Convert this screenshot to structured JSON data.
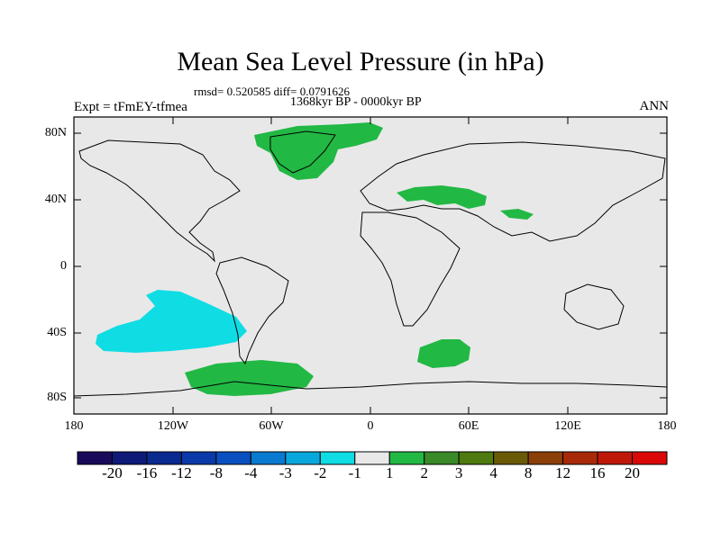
{
  "title": "Mean Sea Level Pressure (in hPa)",
  "stats_line": "rmsd= 0.520585 diff= 0.0791626",
  "period_line": "1368kyr BP - 0000kyr BP",
  "experiment": "Expt = tFmEY-tfmea",
  "season": "ANN",
  "lat_labels": [
    "80N",
    "40N",
    "0",
    "40S",
    "80S"
  ],
  "lon_labels": [
    "180",
    "120W",
    "60W",
    "0",
    "60E",
    "120E",
    "180"
  ],
  "colorbar": {
    "labels": [
      "-20",
      "-16",
      "-12",
      "-8",
      "-4",
      "-3",
      "-2",
      "-1",
      "1",
      "2",
      "3",
      "4",
      "8",
      "12",
      "16",
      "20"
    ],
    "colors": [
      "#1a0a5a",
      "#0e1a78",
      "#0a2a90",
      "#0a3aa8",
      "#0a50c0",
      "#0a7ad0",
      "#08a8dc",
      "#10dce4",
      "#e8e8e8",
      "#22b844",
      "#3a8a2a",
      "#4e7a10",
      "#6a5a08",
      "#8a4008",
      "#a82a08",
      "#c01808",
      "#dc0808"
    ]
  },
  "colors": {
    "ocean_land_bg": "#e8e8e8",
    "positive_anomaly": "#22b844",
    "negative_anomaly": "#10dce4"
  }
}
